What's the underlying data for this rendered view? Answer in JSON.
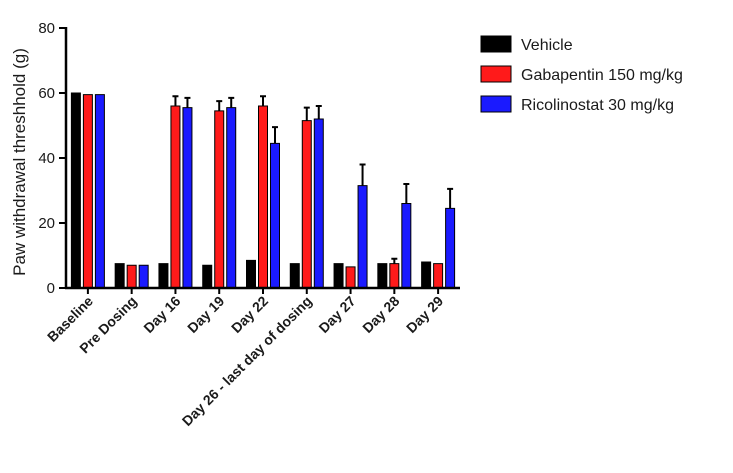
{
  "chart_data": {
    "type": "bar",
    "title": "",
    "xlabel": "",
    "ylabel": "Paw withdrawal threshhold (g)",
    "ylim": [
      0,
      80
    ],
    "yticks": [
      0,
      20,
      40,
      60,
      80
    ],
    "grid": false,
    "legend_position": "top-right",
    "categories": [
      "Baseline",
      "Pre Dosing",
      "Day 16",
      "Day 19",
      "Day 22",
      "Day 26 - last day of dosing",
      "Day 27",
      "Day 28",
      "Day 29"
    ],
    "series": [
      {
        "name": "Vehicle",
        "color": "#000000",
        "values": [
          60,
          7.5,
          7.5,
          7,
          8.5,
          7.5,
          7.5,
          7.5,
          8
        ],
        "errors": [
          0,
          0,
          0,
          0,
          0,
          0,
          0,
          0,
          0
        ]
      },
      {
        "name": "Gabapentin 150 mg/kg",
        "color": "#ff1a1a",
        "values": [
          59.5,
          7,
          56,
          54.5,
          56,
          51.5,
          6.5,
          7.5,
          7.5
        ],
        "errors": [
          0,
          0,
          3,
          3,
          3,
          4,
          0,
          1.5,
          0
        ]
      },
      {
        "name": "Ricolinostat 30 mg/kg",
        "color": "#1a1aff",
        "values": [
          59.5,
          7,
          55.5,
          55.5,
          44.5,
          52,
          31.5,
          26,
          24.5
        ],
        "errors": [
          0,
          0,
          3,
          3,
          5,
          4,
          6.5,
          6,
          6
        ]
      }
    ]
  }
}
